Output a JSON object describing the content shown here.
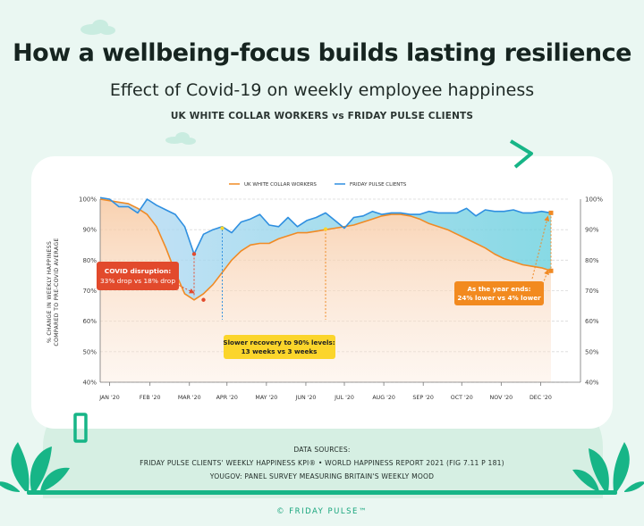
{
  "title": "How a wellbeing-focus builds lasting resilience",
  "subtitle": "Effect of Covid-19 on weekly employee happiness",
  "comparison": "UK WHITE COLLAR WORKERS vs FRIDAY PULSE CLIENTS",
  "sources": {
    "heading": "DATA SOURCES:",
    "line1": "FRIDAY PULSE CLIENTS' WEEKLY HAPPINESS KPI®  •  WORLD HAPPINESS REPORT 2021 (FIG 7.11 P 181)",
    "line2": "YOUGOV: PANEL SURVEY MEASURING BRITAIN'S WEEKLY MOOD"
  },
  "footer": "© FRIDAY PULSE™",
  "colors": {
    "uk": "#f08a24",
    "friday": "#2f8fe0",
    "covid_box": "#e24a2c",
    "recovery_box": "#fbd52b",
    "yearend_box": "#f28a1f",
    "accent_green": "#17b587"
  },
  "chart_data": {
    "type": "line",
    "title": "",
    "xlabel": "",
    "ylabel": "% CHANGE IN WEEKLY HAPPINESS COMPARED TO PRE-COVID AVERAGE",
    "ylim": [
      40,
      100
    ],
    "y_ticks": [
      "40%",
      "50%",
      "60%",
      "70%",
      "80%",
      "90%",
      "100%"
    ],
    "y_tick_values": [
      40,
      50,
      60,
      70,
      80,
      90,
      100
    ],
    "x_ticks": [
      "JAN '20",
      "FEB '20",
      "MAR '20",
      "APR '20",
      "MAY '20",
      "JUN '20",
      "JUL '20",
      "AUG '20",
      "SEP '20",
      "OCT '20",
      "NOV '20",
      "DEC '20"
    ],
    "x_range": [
      0,
      50
    ],
    "x_tick_positions": [
      1,
      5.3,
      9.5,
      13.5,
      17.7,
      21.9,
      26,
      30.2,
      34.4,
      38.5,
      42.7,
      46.9
    ],
    "legend_position": "top-center",
    "grid": true,
    "series": [
      {
        "name": "UK WHITE COLLAR WORKERS",
        "x": [
          0,
          1,
          2,
          3,
          4,
          5,
          6,
          7,
          8,
          9,
          10,
          11,
          12,
          13,
          14,
          15,
          16,
          17,
          18,
          19,
          20,
          21,
          22,
          23,
          24,
          25,
          26,
          27,
          28,
          29,
          30,
          31,
          32,
          33,
          34,
          35,
          36,
          37,
          38,
          39,
          40,
          41,
          42,
          43,
          44,
          45,
          46,
          47,
          48
        ],
        "values": [
          100,
          99.5,
          99,
          98.5,
          97,
          95,
          91,
          84,
          76,
          69,
          67,
          69,
          72,
          76,
          80,
          83,
          85,
          85.5,
          85.5,
          87,
          88,
          89,
          89,
          89.5,
          90,
          90.5,
          91,
          91.5,
          92.5,
          93.5,
          94.5,
          95,
          95,
          94.5,
          93.5,
          92,
          91,
          90,
          88.5,
          87,
          85.5,
          84,
          82,
          80.5,
          79.5,
          78.5,
          78,
          77.5,
          76.5
        ]
      },
      {
        "name": "FRIDAY PULSE CLIENTS",
        "x": [
          0,
          1,
          2,
          3,
          4,
          5,
          6,
          7,
          8,
          9,
          10,
          11,
          12,
          13,
          14,
          15,
          16,
          17,
          18,
          19,
          20,
          21,
          22,
          23,
          24,
          25,
          26,
          27,
          28,
          29,
          30,
          31,
          32,
          33,
          34,
          35,
          36,
          37,
          38,
          39,
          40,
          41,
          42,
          43,
          44,
          45,
          46,
          47,
          48
        ],
        "values": [
          100.5,
          100,
          97.5,
          97.5,
          95.5,
          100,
          98,
          96.5,
          95,
          91,
          82,
          88.5,
          90,
          91,
          89,
          92.5,
          93.5,
          95,
          91.5,
          91,
          94,
          91,
          93,
          94,
          95.5,
          93,
          90.5,
          94,
          94.5,
          96,
          95,
          95.5,
          95.5,
          95,
          95,
          96,
          95.5,
          95.5,
          95.5,
          97,
          94.5,
          96.5,
          96,
          96,
          96.5,
          95.5,
          95.5,
          96,
          95.5
        ]
      }
    ],
    "annotations": [
      {
        "text": [
          "COVID disruption:",
          "33% drop vs 18% drop"
        ]
      },
      {
        "text": [
          "Slower recovery to 90% levels:",
          "13 weeks vs 3 weeks"
        ]
      },
      {
        "text": [
          "As the year ends:",
          "24% lower vs 4% lower"
        ]
      }
    ]
  }
}
